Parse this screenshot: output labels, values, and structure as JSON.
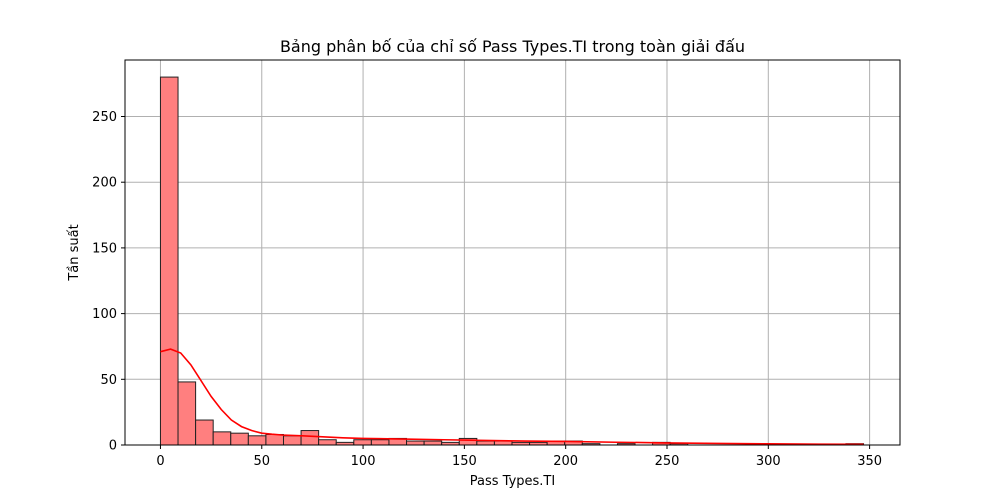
{
  "chart_data": {
    "type": "bar",
    "title": "Bảng phân bố của chỉ số Pass Types.TI trong toàn giải đấu",
    "xlabel": "Pass Types.TI",
    "ylabel": "Tần suất",
    "xlim": [
      -17.5,
      365
    ],
    "ylim": [
      0,
      293
    ],
    "xticks": [
      0,
      50,
      100,
      150,
      200,
      250,
      300,
      350
    ],
    "yticks": [
      0,
      50,
      100,
      150,
      200,
      250
    ],
    "grid": true,
    "bar_color": "#ff7f7f",
    "bar_edge_color": "#222222",
    "kde_color": "#ff0000",
    "bin_edges": [
      0,
      8.675,
      17.35,
      26.025,
      34.7,
      43.375,
      52.05,
      60.725,
      69.4,
      78.075,
      86.75,
      95.425,
      104.1,
      112.775,
      121.45,
      130.125,
      138.8,
      147.475,
      156.15,
      164.825,
      173.5,
      182.175,
      190.85,
      199.525,
      208.2,
      216.875,
      225.55,
      234.225,
      242.9,
      251.575,
      260.25,
      268.925,
      277.6,
      286.275,
      294.95,
      303.625,
      312.3,
      320.975,
      329.65,
      338.325,
      347
    ],
    "values": [
      280,
      48,
      19,
      10,
      9,
      7,
      8,
      7,
      11,
      4,
      2,
      4,
      4,
      5,
      3,
      3,
      2,
      5,
      3,
      3,
      2,
      2,
      3,
      3,
      1,
      0,
      1,
      0,
      2,
      1,
      0,
      0,
      0,
      0,
      0,
      0,
      0,
      0,
      0,
      1
    ],
    "kde": {
      "x": [
        0,
        5,
        10,
        15,
        20,
        25,
        30,
        35,
        40,
        45,
        50,
        55,
        60,
        70,
        80,
        90,
        100,
        120,
        140,
        160,
        180,
        200,
        225,
        250,
        275,
        300,
        325,
        347
      ],
      "y": [
        71,
        73,
        70,
        61,
        49,
        37,
        27,
        19,
        14,
        11,
        9,
        8.2,
        7.6,
        7.0,
        6.2,
        5.5,
        5.0,
        4.5,
        4.0,
        3.5,
        3.0,
        2.7,
        2.1,
        1.6,
        1.2,
        0.9,
        0.6,
        0.5
      ]
    }
  }
}
